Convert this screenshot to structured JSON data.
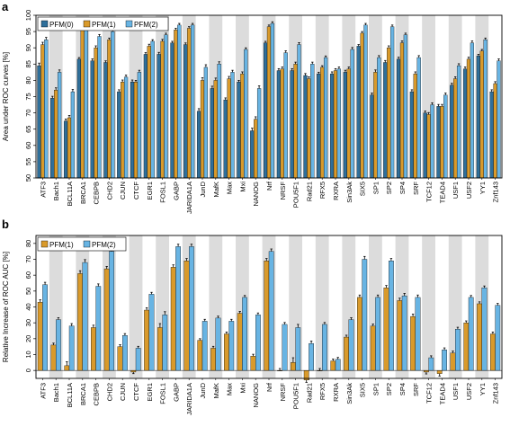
{
  "colors": {
    "pfm0": "#2f6f9a",
    "pfm1": "#d99a2b",
    "pfm2": "#68b4e3",
    "stripe": "#dcdcdc",
    "error": "#000000"
  },
  "chart_data": [
    {
      "panel_label": "a",
      "type": "bar",
      "ylabel": "Area under ROC curves [%]",
      "ylim": [
        50,
        100
      ],
      "yticks": [
        50,
        55,
        60,
        65,
        70,
        75,
        80,
        85,
        90,
        95,
        100
      ],
      "grid": false,
      "legend_position": "top-left",
      "categories": [
        "ATF3",
        "Bach1",
        "BCL11A",
        "BRCA1",
        "CEBPB",
        "CHD2",
        "CJUN",
        "CTCF",
        "EGR1",
        "FOSL1",
        "GABP",
        "JARIDA1A",
        "JunD",
        "MafK",
        "Max",
        "Mxi",
        "NANOG",
        "Nrf",
        "NRSF",
        "POU5F1",
        "Rad21",
        "RFX5",
        "RXRA",
        "Sin3Ak",
        "SIX5",
        "SP1",
        "SP2",
        "SP4",
        "SRF",
        "TCF12",
        "TEAD4",
        "USF1",
        "USF2",
        "YY1",
        "Znf143"
      ],
      "series": [
        {
          "name": "PFM(0)",
          "values": [
            84.5,
            74.5,
            67.5,
            86.5,
            86.0,
            85.5,
            76.5,
            79.5,
            88.0,
            88.0,
            91.5,
            91.0,
            70.5,
            77.5,
            74.0,
            79.5,
            64.5,
            91.5,
            83.0,
            83.0,
            81.5,
            82.0,
            82.0,
            82.5,
            90.5,
            75.5,
            85.5,
            86.5,
            76.5,
            70.0,
            72.0,
            78.5,
            83.5,
            87.5,
            76.5
          ]
        },
        {
          "name": "PFM(1)",
          "values": [
            91.0,
            77.0,
            68.5,
            96.0,
            90.0,
            92.5,
            79.5,
            79.5,
            90.5,
            92.0,
            95.5,
            96.0,
            80.0,
            80.0,
            80.5,
            82.0,
            68.0,
            96.5,
            83.5,
            85.0,
            80.5,
            84.0,
            83.0,
            83.5,
            94.5,
            82.5,
            90.0,
            91.5,
            82.0,
            69.5,
            72.0,
            80.5,
            86.5,
            89.0,
            79.0
          ]
        },
        {
          "name": "PFM(2)",
          "values": [
            92.5,
            82.5,
            76.5,
            96.5,
            93.5,
            95.0,
            81.0,
            82.5,
            92.0,
            94.0,
            97.0,
            97.0,
            84.0,
            85.0,
            82.5,
            89.5,
            77.5,
            97.5,
            88.5,
            91.0,
            85.0,
            87.0,
            83.5,
            89.5,
            97.0,
            87.0,
            96.5,
            94.0,
            87.0,
            72.5,
            75.5,
            84.5,
            91.5,
            92.5,
            86.0
          ]
        }
      ],
      "errors": [
        [
          0.8,
          0.6,
          0.6,
          0.5,
          0.6,
          0.5,
          0.6,
          0.6,
          0.5,
          0.6,
          0.5,
          0.5,
          0.8,
          0.7,
          0.6,
          0.5,
          0.8,
          0.5,
          0.6,
          0.6,
          0.6,
          0.5,
          0.6,
          0.6,
          0.5,
          0.6,
          0.6,
          0.6,
          0.6,
          0.6,
          0.6,
          0.6,
          0.6,
          0.5,
          0.6
        ],
        [
          0.7,
          0.7,
          0.7,
          0.5,
          0.6,
          0.5,
          0.6,
          0.5,
          0.6,
          0.6,
          0.5,
          0.5,
          0.8,
          0.7,
          0.7,
          0.6,
          0.8,
          0.5,
          0.6,
          0.6,
          0.6,
          0.5,
          0.6,
          0.6,
          0.5,
          0.7,
          0.6,
          0.6,
          0.6,
          0.6,
          0.6,
          0.6,
          0.6,
          0.5,
          0.6
        ],
        [
          0.7,
          0.7,
          0.7,
          0.5,
          0.6,
          0.5,
          0.6,
          0.6,
          0.5,
          0.5,
          0.5,
          0.5,
          0.8,
          0.7,
          0.6,
          0.5,
          0.8,
          0.5,
          0.6,
          0.6,
          0.6,
          0.5,
          0.6,
          0.6,
          0.5,
          0.6,
          0.5,
          0.5,
          0.6,
          0.6,
          0.6,
          0.6,
          0.6,
          0.5,
          0.6
        ]
      ]
    },
    {
      "panel_label": "b",
      "type": "bar",
      "ylabel": "Relative Increase of ROC AUC [%]",
      "ylim": [
        -5,
        85
      ],
      "yticks": [
        0,
        10,
        20,
        30,
        40,
        50,
        60,
        70,
        80
      ],
      "grid": false,
      "legend_position": "top-left",
      "categories": [
        "ATF3",
        "Bach1",
        "BCL11A",
        "BRCA1",
        "CEBPB",
        "CHD2",
        "CJUN",
        "CTCF",
        "EGR1",
        "FOSL1",
        "GABP",
        "JARIDA1A",
        "JunD",
        "MafK",
        "Max",
        "Mxi",
        "NANOG",
        "Nrf",
        "NRSF",
        "POU5F1",
        "Rad21",
        "RFX5",
        "RXRA",
        "Sin3Ak",
        "SIX5",
        "SP1",
        "SP2",
        "SP4",
        "SRF",
        "TCF12",
        "TEAD4",
        "USF1",
        "USF2",
        "YY1",
        "Znf143"
      ],
      "series": [
        {
          "name": "PFM(1)",
          "values": [
            43,
            16,
            3,
            61,
            27,
            64,
            15,
            -1,
            38,
            27,
            65,
            69,
            19,
            14,
            23,
            36,
            9,
            69,
            0,
            5,
            -6,
            0,
            6,
            21,
            46,
            28,
            52,
            44,
            34,
            -1,
            -2,
            11,
            30,
            42,
            23
          ]
        },
        {
          "name": "PFM(2)",
          "values": [
            54,
            32,
            28,
            68,
            53,
            75,
            22,
            14,
            48,
            35,
            78,
            78,
            31,
            33,
            31,
            46,
            35,
            75,
            29,
            27,
            17,
            29,
            7,
            32,
            70,
            46,
            69,
            47,
            46,
            8,
            13,
            26,
            46,
            52,
            41
          ]
        }
      ],
      "errors": [
        [
          1.5,
          1.2,
          2.5,
          1.8,
          1.5,
          1.5,
          1.2,
          1.0,
          1.5,
          2.5,
          1.5,
          1.5,
          1.0,
          1.2,
          1.2,
          1.2,
          1.2,
          1.5,
          1.2,
          3.0,
          1.5,
          1.2,
          1.2,
          1.2,
          1.5,
          1.2,
          1.5,
          1.5,
          1.5,
          1.2,
          1.5,
          1.2,
          1.2,
          1.2,
          1.2
        ],
        [
          1.5,
          1.2,
          1.5,
          1.8,
          1.5,
          1.5,
          1.2,
          1.2,
          1.2,
          2.0,
          1.5,
          1.5,
          1.2,
          1.2,
          1.2,
          1.2,
          1.2,
          1.5,
          1.2,
          2.0,
          1.5,
          1.2,
          1.2,
          1.2,
          1.8,
          1.5,
          1.5,
          1.5,
          1.5,
          1.2,
          1.2,
          1.2,
          1.2,
          1.2,
          1.2
        ]
      ]
    }
  ]
}
